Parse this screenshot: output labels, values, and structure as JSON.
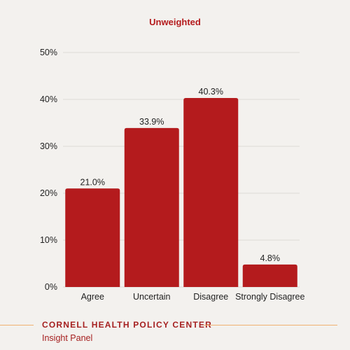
{
  "chart_data": {
    "type": "bar",
    "title": "Unweighted",
    "categories": [
      "Agree",
      "Uncertain",
      "Disagree",
      "Strongly Disagree"
    ],
    "values": [
      21.0,
      33.9,
      40.3,
      4.8
    ],
    "value_labels": [
      "21.0%",
      "33.9%",
      "40.3%",
      "4.8%"
    ],
    "xlabel": "",
    "ylabel": "",
    "ylim": [
      0,
      50
    ],
    "yticks": [
      0,
      10,
      20,
      30,
      40,
      50
    ],
    "ytick_labels": [
      "0%",
      "10%",
      "20%",
      "30%",
      "40%",
      "50%"
    ],
    "grid": true
  },
  "footer": {
    "organization": "CORNELL HEALTH POLICY CENTER",
    "panel": "Insight Panel"
  },
  "colors": {
    "background": "#f3f1ee",
    "bar": "#b41b1d",
    "title": "#b41b1d",
    "text": "#222222",
    "grid": "#dedbd6",
    "accent_line": "#f0b070",
    "org_text": "#a51f1f",
    "panel_text": "#a51f1f"
  }
}
